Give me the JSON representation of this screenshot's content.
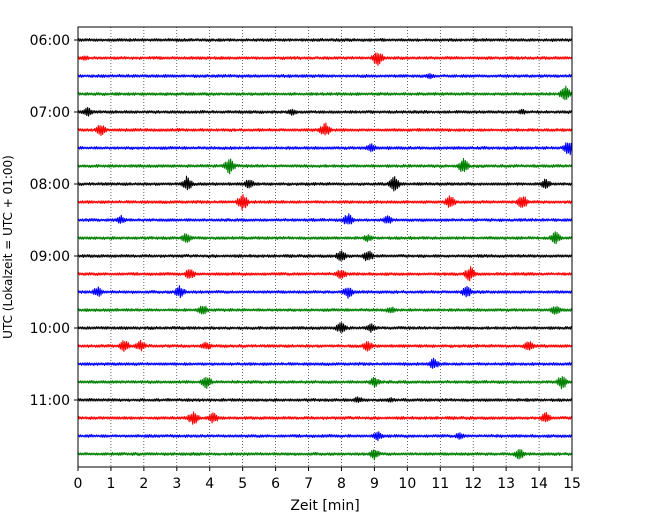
{
  "chart_data": {
    "type": "line",
    "title": "",
    "xlabel": "Zeit  [min]",
    "ylabel": "UTC (Lokalzeit = UTC + 01:00)",
    "xlim": [
      0,
      15
    ],
    "x_ticks": [
      0,
      1,
      2,
      3,
      4,
      5,
      6,
      7,
      8,
      9,
      10,
      11,
      12,
      13,
      14,
      15
    ],
    "y_ticks": [
      "06:00",
      "07:00",
      "08:00",
      "09:00",
      "10:00",
      "11:00"
    ],
    "grid": "vertical dotted",
    "trace_interval_min": 15,
    "trace_colors": [
      "#000000",
      "#ff0000",
      "#0000ff",
      "#008000"
    ],
    "traces": [
      {
        "start": "06:00",
        "color": "#000000",
        "events": []
      },
      {
        "start": "06:15",
        "color": "#ff0000",
        "events": [
          [
            0.2,
            3
          ],
          [
            9.1,
            8
          ]
        ]
      },
      {
        "start": "06:30",
        "color": "#0000ff",
        "events": [
          [
            10.7,
            3
          ]
        ]
      },
      {
        "start": "06:45",
        "color": "#008000",
        "events": [
          [
            14.8,
            9
          ]
        ]
      },
      {
        "start": "07:00",
        "color": "#000000",
        "events": [
          [
            0.3,
            5
          ],
          [
            6.5,
            4
          ],
          [
            13.5,
            3
          ]
        ]
      },
      {
        "start": "07:15",
        "color": "#ff0000",
        "events": [
          [
            0.7,
            7
          ],
          [
            7.5,
            8
          ]
        ]
      },
      {
        "start": "07:30",
        "color": "#0000ff",
        "events": [
          [
            8.9,
            5
          ],
          [
            14.9,
            9
          ]
        ]
      },
      {
        "start": "07:45",
        "color": "#008000",
        "events": [
          [
            4.6,
            9
          ],
          [
            11.7,
            8
          ]
        ]
      },
      {
        "start": "08:00",
        "color": "#000000",
        "events": [
          [
            3.3,
            8
          ],
          [
            5.2,
            6
          ],
          [
            9.6,
            8
          ],
          [
            14.2,
            6
          ]
        ]
      },
      {
        "start": "08:15",
        "color": "#ff0000",
        "events": [
          [
            5.0,
            9
          ],
          [
            11.3,
            7
          ],
          [
            13.5,
            8
          ]
        ]
      },
      {
        "start": "08:30",
        "color": "#0000ff",
        "events": [
          [
            1.3,
            5
          ],
          [
            8.2,
            7
          ],
          [
            9.4,
            5
          ]
        ]
      },
      {
        "start": "08:45",
        "color": "#008000",
        "events": [
          [
            3.3,
            6
          ],
          [
            8.8,
            4
          ],
          [
            14.5,
            7
          ]
        ]
      },
      {
        "start": "09:00",
        "color": "#000000",
        "events": [
          [
            8.0,
            7
          ],
          [
            8.8,
            7
          ]
        ]
      },
      {
        "start": "09:15",
        "color": "#ff0000",
        "events": [
          [
            3.4,
            6
          ],
          [
            8.0,
            6
          ],
          [
            11.9,
            8
          ]
        ]
      },
      {
        "start": "09:30",
        "color": "#0000ff",
        "events": [
          [
            0.6,
            6
          ],
          [
            3.1,
            7
          ],
          [
            8.2,
            7
          ],
          [
            11.8,
            6
          ]
        ]
      },
      {
        "start": "09:45",
        "color": "#008000",
        "events": [
          [
            3.8,
            6
          ],
          [
            9.5,
            4
          ],
          [
            14.5,
            5
          ]
        ]
      },
      {
        "start": "10:00",
        "color": "#000000",
        "events": [
          [
            8.0,
            7
          ],
          [
            8.9,
            5
          ]
        ]
      },
      {
        "start": "10:15",
        "color": "#ff0000",
        "events": [
          [
            1.4,
            7
          ],
          [
            1.9,
            6
          ],
          [
            3.9,
            5
          ],
          [
            8.8,
            6
          ],
          [
            13.7,
            6
          ]
        ]
      },
      {
        "start": "10:30",
        "color": "#0000ff",
        "events": [
          [
            10.8,
            6
          ]
        ]
      },
      {
        "start": "10:45",
        "color": "#008000",
        "events": [
          [
            3.9,
            7
          ],
          [
            9.0,
            6
          ],
          [
            14.7,
            8
          ]
        ]
      },
      {
        "start": "11:00",
        "color": "#000000",
        "events": [
          [
            8.5,
            4
          ],
          [
            9.5,
            3
          ]
        ]
      },
      {
        "start": "11:15",
        "color": "#ff0000",
        "events": [
          [
            3.5,
            8
          ],
          [
            4.1,
            6
          ],
          [
            14.2,
            6
          ]
        ]
      },
      {
        "start": "11:30",
        "color": "#0000ff",
        "events": [
          [
            9.1,
            5
          ],
          [
            11.6,
            4
          ]
        ]
      },
      {
        "start": "11:45",
        "color": "#008000",
        "events": [
          [
            9.0,
            6
          ],
          [
            13.4,
            6
          ]
        ]
      }
    ]
  }
}
